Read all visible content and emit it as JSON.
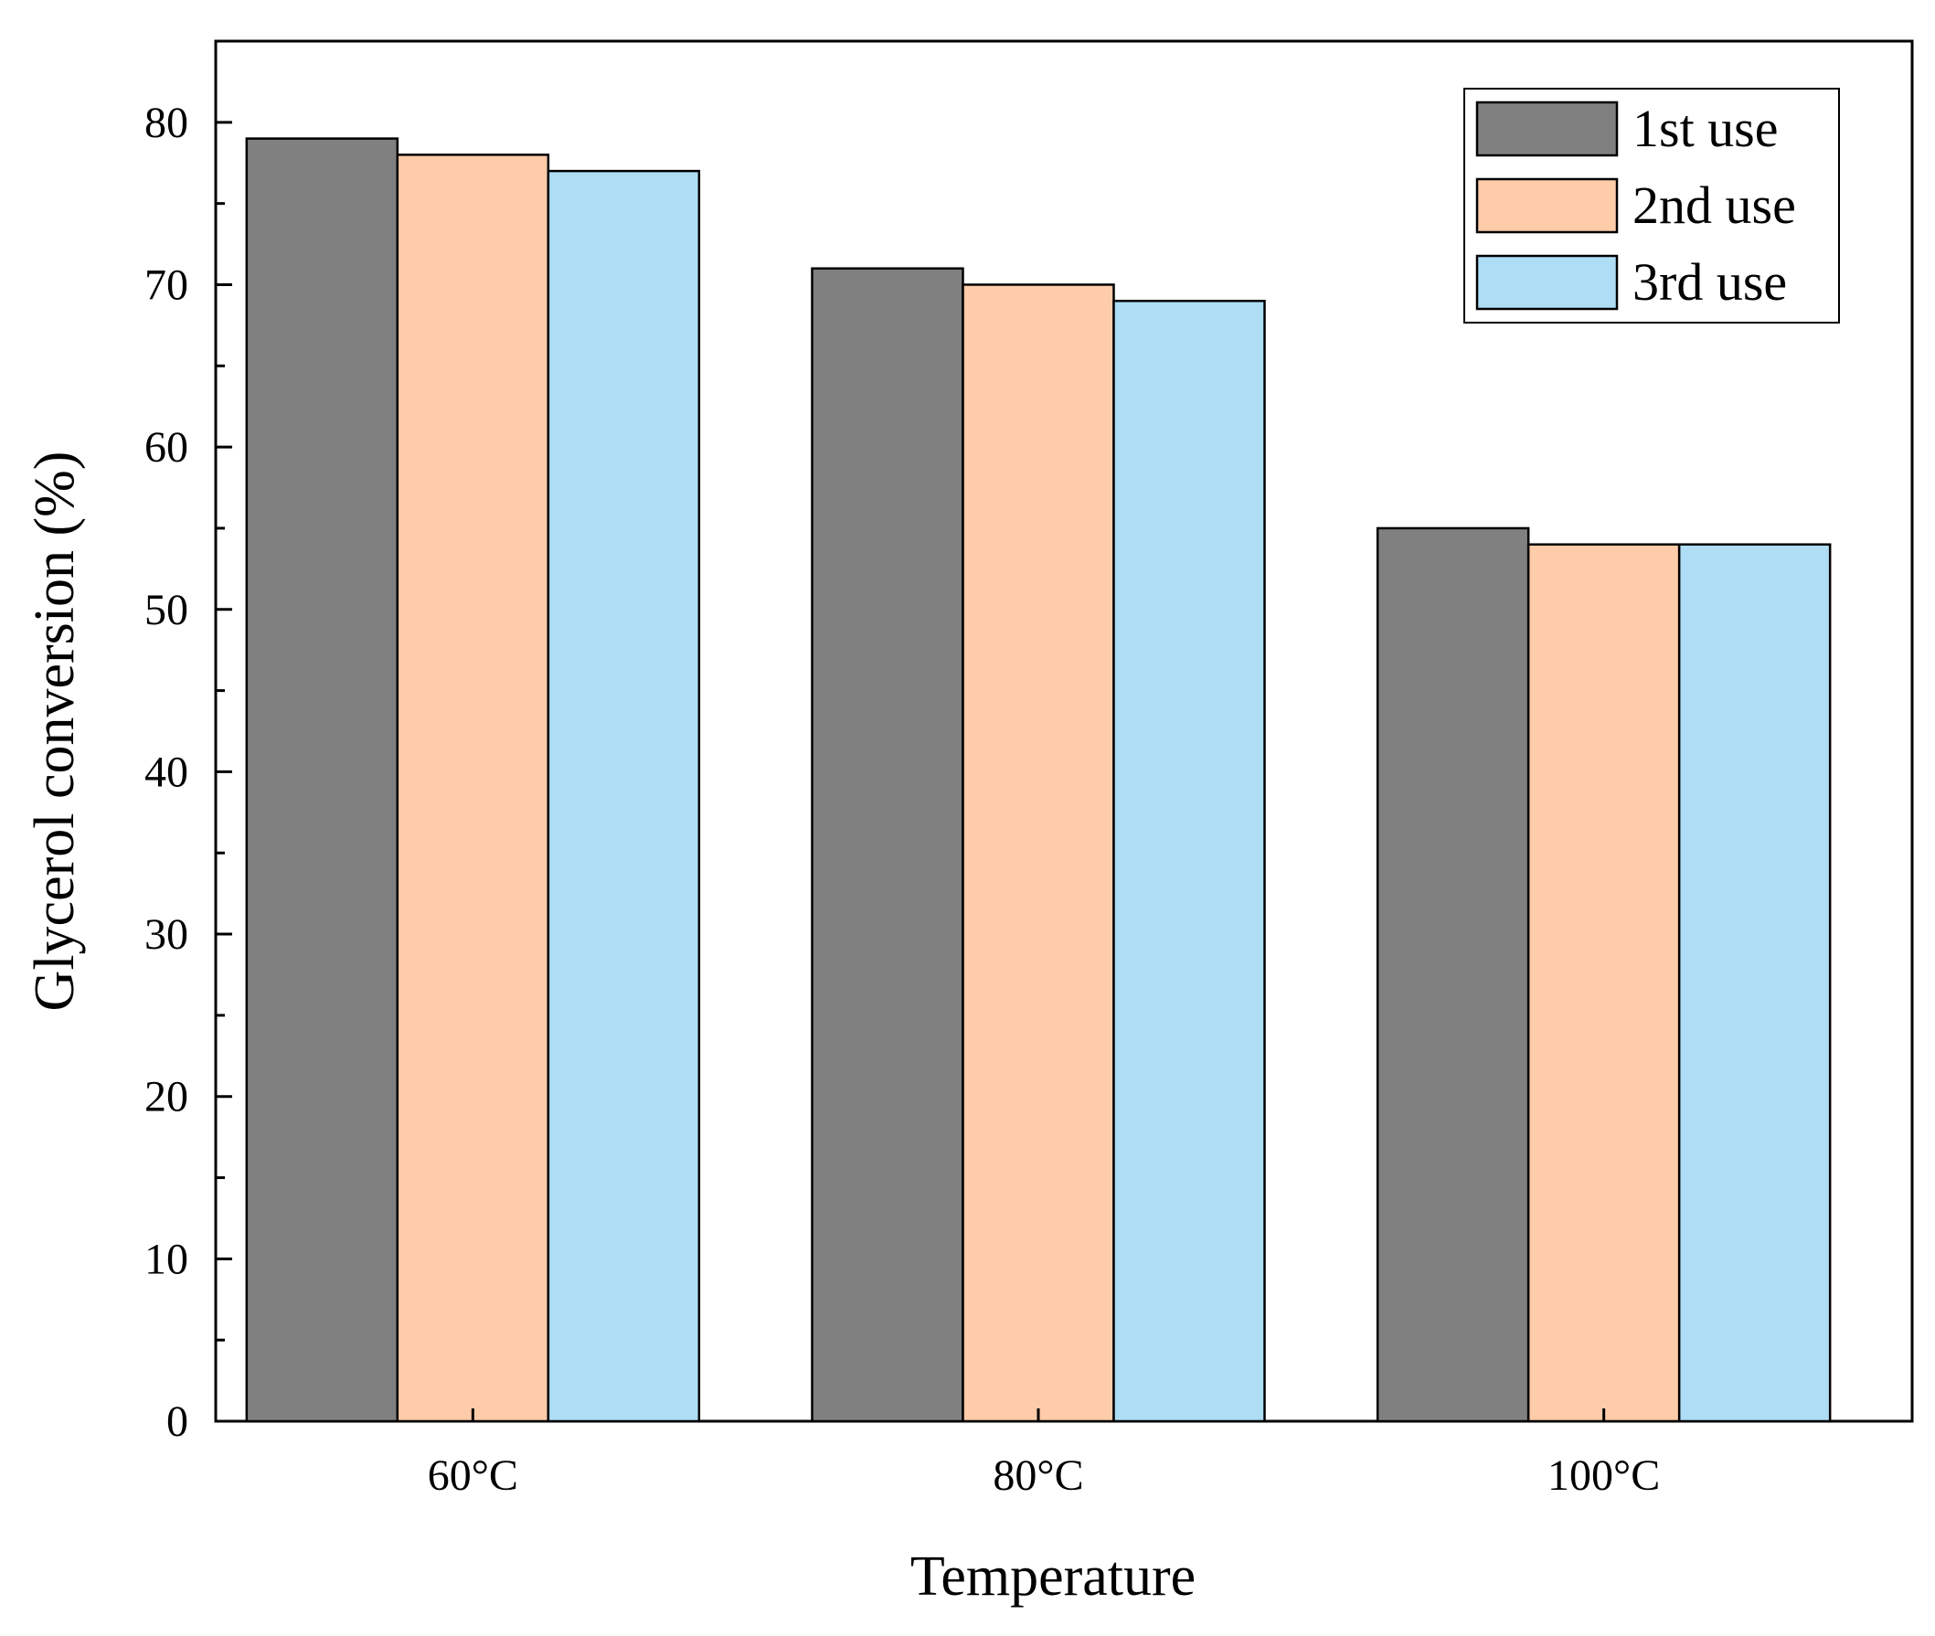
{
  "chart_data": {
    "type": "bar",
    "title": "",
    "xlabel": "Temperature",
    "ylabel": "Glycerol conversion (%)",
    "ylim": [
      0,
      85
    ],
    "yticks": [
      0,
      10,
      20,
      30,
      40,
      50,
      60,
      70,
      80
    ],
    "categories": [
      "60°C",
      "80°C",
      "100°C"
    ],
    "series": [
      {
        "name": "1st use",
        "color": "#808080",
        "values": [
          79,
          71,
          55
        ]
      },
      {
        "name": "2nd use",
        "color": "#FFCCAA",
        "values": [
          78,
          70,
          54
        ]
      },
      {
        "name": "3rd use",
        "color": "#AEDDF5",
        "values": [
          77,
          69,
          54
        ]
      }
    ],
    "legend_position": "top-right",
    "grid": false
  }
}
